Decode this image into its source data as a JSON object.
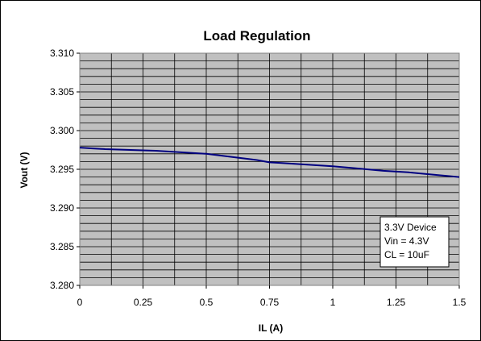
{
  "chart_data": {
    "type": "line",
    "title": "Load Regulation",
    "xlabel": "IL (A)",
    "ylabel": "Vout (V)",
    "xlim": [
      0,
      1.5
    ],
    "ylim": [
      3.28,
      3.31
    ],
    "x_ticks": [
      "0",
      "0.25",
      "0.5",
      "0.75",
      "1",
      "1.25",
      "1.5"
    ],
    "y_ticks": [
      "3.280",
      "3.285",
      "3.290",
      "3.295",
      "3.300",
      "3.305",
      "3.310"
    ],
    "grid": true,
    "plot_background": "#c0c0c0",
    "line_color": "#000080",
    "annotation": [
      "3.3V Device",
      "Vin = 4.3V",
      "CL = 10uF"
    ],
    "series": [
      {
        "x": [
          0,
          0.05,
          0.1,
          0.2,
          0.3,
          0.4,
          0.5,
          0.6,
          0.7,
          0.75,
          0.8,
          0.9,
          1.0,
          1.1,
          1.2,
          1.3,
          1.4,
          1.5
        ],
        "y": [
          3.2978,
          3.2977,
          3.2976,
          3.2975,
          3.2974,
          3.2972,
          3.297,
          3.2966,
          3.2962,
          3.2959,
          3.2958,
          3.2956,
          3.2954,
          3.2951,
          3.2948,
          3.2946,
          3.2943,
          3.294
        ]
      }
    ]
  }
}
